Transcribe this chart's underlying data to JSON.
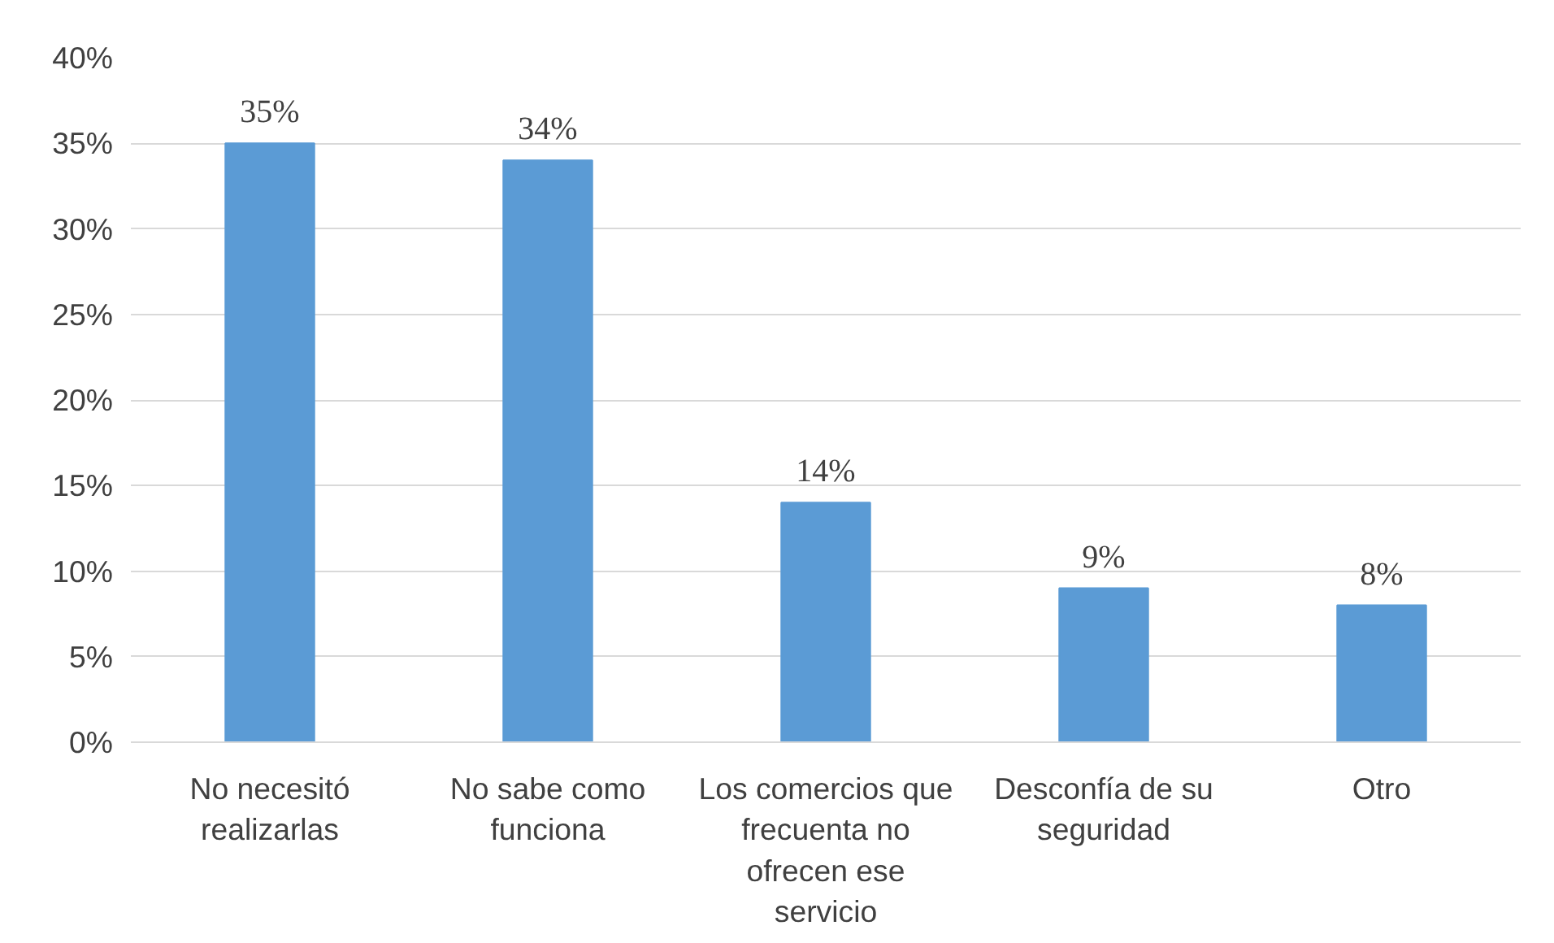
{
  "chart_data": {
    "type": "bar",
    "categories": [
      "No necesitó realizarlas",
      "No sabe como funciona",
      "Los comercios que frecuenta no ofrecen ese servicio",
      "Desconfía de su seguridad",
      "Otro"
    ],
    "values": [
      35,
      34,
      14,
      9,
      8
    ],
    "value_labels": [
      "35%",
      "34%",
      "14%",
      "9%",
      "8%"
    ],
    "color": "#5b9bd5",
    "ylim": [
      0,
      40
    ],
    "yticks": [
      {
        "value": 0,
        "label": "0%"
      },
      {
        "value": 5,
        "label": "5%"
      },
      {
        "value": 10,
        "label": "10%"
      },
      {
        "value": 15,
        "label": "15%"
      },
      {
        "value": 20,
        "label": "20%"
      },
      {
        "value": 25,
        "label": "25%"
      },
      {
        "value": 30,
        "label": "30%"
      },
      {
        "value": 35,
        "label": "35%"
      },
      {
        "value": 40,
        "label": "40%"
      }
    ],
    "grid": "y"
  }
}
